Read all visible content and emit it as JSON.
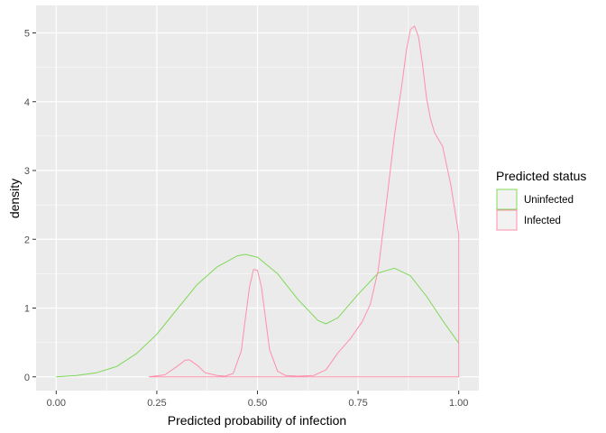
{
  "chart_data": {
    "type": "line",
    "subtype": "density",
    "title": "",
    "xlabel": "Predicted probability of infection",
    "ylabel": "density",
    "xlim": [
      -0.05,
      1.05
    ],
    "ylim": [
      -0.2,
      5.4
    ],
    "x_ticks": [
      0.0,
      0.25,
      0.5,
      0.75,
      1.0
    ],
    "x_tick_labels": [
      "0.00",
      "0.25",
      "0.50",
      "0.75",
      "1.00"
    ],
    "y_ticks": [
      0,
      1,
      2,
      3,
      4,
      5
    ],
    "y_tick_labels": [
      "0",
      "1",
      "2",
      "3",
      "4",
      "5"
    ],
    "grid": true,
    "background": "#ebebeb",
    "grid_color": "#ffffff",
    "legend": {
      "title": "Predicted status",
      "placement": "right"
    },
    "series": [
      {
        "name": "Uninfected",
        "color": "#7ed957",
        "x": [
          0.0,
          0.05,
          0.1,
          0.15,
          0.2,
          0.25,
          0.3,
          0.35,
          0.4,
          0.45,
          0.47,
          0.5,
          0.55,
          0.6,
          0.65,
          0.67,
          0.7,
          0.75,
          0.8,
          0.84,
          0.88,
          0.92,
          0.96,
          1.0
        ],
        "y": [
          0.0,
          0.02,
          0.06,
          0.15,
          0.34,
          0.62,
          0.98,
          1.34,
          1.6,
          1.76,
          1.78,
          1.74,
          1.5,
          1.13,
          0.82,
          0.77,
          0.86,
          1.2,
          1.51,
          1.58,
          1.47,
          1.17,
          0.82,
          0.49
        ]
      },
      {
        "name": "Infected",
        "color": "#ff8fab",
        "x": [
          0.23,
          0.27,
          0.3,
          0.32,
          0.33,
          0.35,
          0.37,
          0.4,
          0.42,
          0.44,
          0.46,
          0.47,
          0.48,
          0.49,
          0.5,
          0.51,
          0.52,
          0.53,
          0.55,
          0.57,
          0.6,
          0.64,
          0.67,
          0.7,
          0.73,
          0.76,
          0.78,
          0.8,
          0.82,
          0.84,
          0.86,
          0.87,
          0.88,
          0.89,
          0.9,
          0.91,
          0.92,
          0.93,
          0.94,
          0.96,
          0.98,
          1.0,
          1.0,
          0.23
        ],
        "y": [
          0.0,
          0.03,
          0.15,
          0.24,
          0.25,
          0.17,
          0.06,
          0.02,
          0.01,
          0.05,
          0.38,
          0.85,
          1.3,
          1.56,
          1.55,
          1.3,
          0.85,
          0.4,
          0.08,
          0.02,
          0.01,
          0.02,
          0.1,
          0.35,
          0.55,
          0.8,
          1.05,
          1.55,
          2.5,
          3.5,
          4.3,
          4.75,
          5.05,
          5.1,
          4.95,
          4.55,
          4.05,
          3.75,
          3.55,
          3.35,
          2.8,
          2.07,
          0.0,
          0.0
        ]
      }
    ]
  }
}
